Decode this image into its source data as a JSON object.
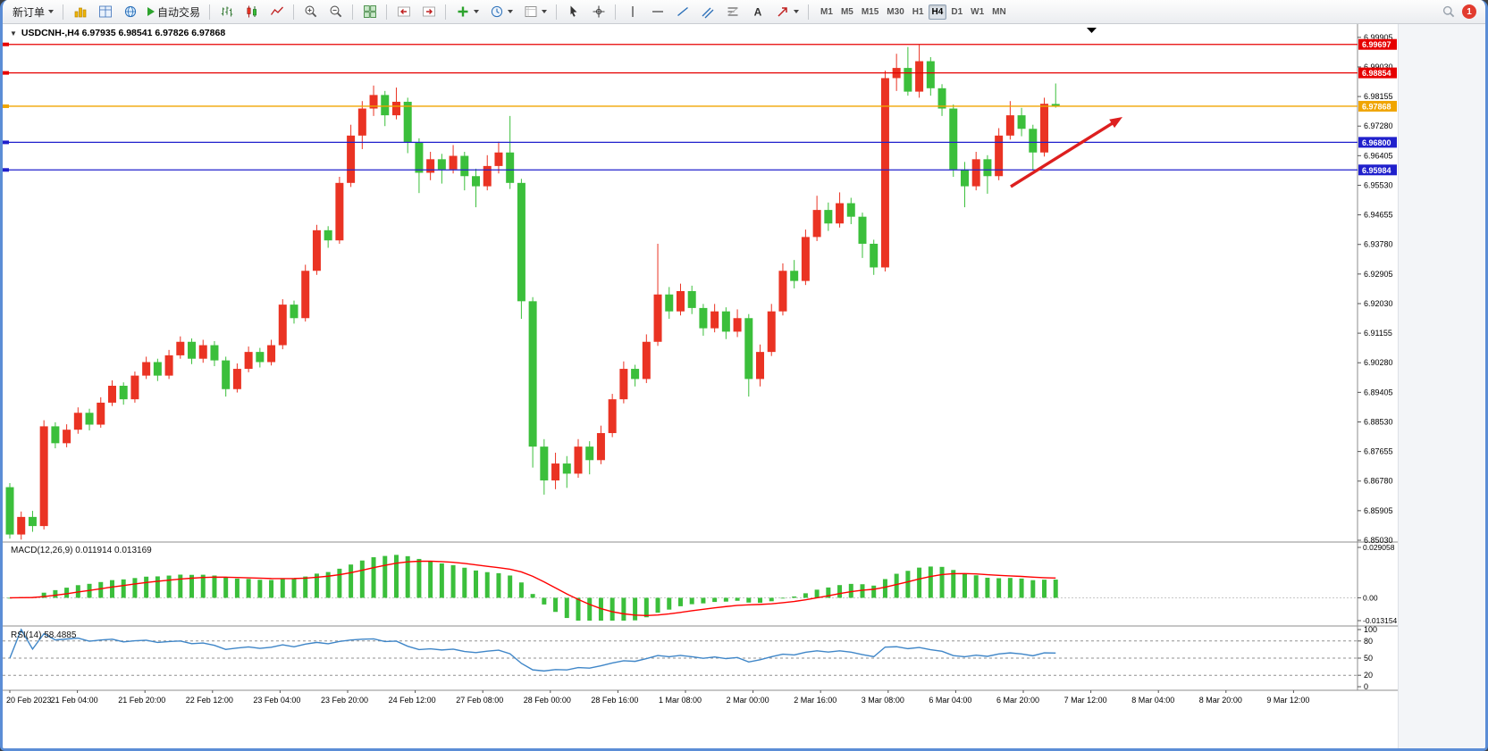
{
  "toolbar": {
    "new_order_label": "新订单",
    "auto_trading_label": "自动交易",
    "timeframes": [
      "M1",
      "M5",
      "M15",
      "M30",
      "H1",
      "H4",
      "D1",
      "W1",
      "MN"
    ],
    "active_timeframe": "H4",
    "notification_count": "1"
  },
  "chart": {
    "header_text": "USDCNH-,H4 6.97935 6.98541 6.97826 6.97868"
  },
  "chart_data": {
    "type": "candlestick",
    "title": "USDCNH-,H4",
    "symbol": "USDCNH",
    "timeframe": "H4",
    "ohlc_current": {
      "open": "6.97935",
      "high": "6.98541",
      "low": "6.97826",
      "close": "6.97868"
    },
    "ylim": [
      6.8503,
      6.9998
    ],
    "up_color": "#ea3323",
    "down_color": "#3bbf3b",
    "price_ticks": [
      "6.99905",
      "6.99030",
      "6.98155",
      "6.97280",
      "6.96405",
      "6.95530",
      "6.94655",
      "6.93780",
      "6.92905",
      "6.92030",
      "6.91155",
      "6.90280",
      "6.89405",
      "6.88530",
      "6.87655",
      "6.86780",
      "6.85905",
      "6.85030"
    ],
    "x_labels": [
      "20 Feb 2023",
      "21 Feb 04:00",
      "21 Feb 20:00",
      "22 Feb 12:00",
      "23 Feb 04:00",
      "23 Feb 20:00",
      "24 Feb 12:00",
      "27 Feb 08:00",
      "28 Feb 00:00",
      "28 Feb 16:00",
      "1 Mar 08:00",
      "2 Mar 00:00",
      "2 Mar 16:00",
      "3 Mar 08:00",
      "6 Mar 04:00",
      "6 Mar 20:00",
      "7 Mar 12:00",
      "8 Mar 04:00",
      "8 Mar 20:00",
      "9 Mar 12:00"
    ],
    "hlines": [
      {
        "price": 6.99697,
        "label": "6.99697",
        "color": "#e60000"
      },
      {
        "price": 6.98854,
        "label": "6.98854",
        "color": "#e60000"
      },
      {
        "price": 6.97868,
        "label": "6.97868",
        "color": "#f0a500"
      },
      {
        "price": 6.968,
        "label": "6.96800",
        "color": "#2020cc"
      },
      {
        "price": 6.95984,
        "label": "6.95984",
        "color": "#2020cc"
      }
    ],
    "ohlc": [
      [
        6.866,
        6.8672,
        6.8508,
        6.852
      ],
      [
        6.852,
        6.8588,
        6.8505,
        6.8572
      ],
      [
        6.8572,
        6.859,
        6.8528,
        6.8545
      ],
      [
        6.8545,
        6.8858,
        6.8535,
        6.884
      ],
      [
        6.884,
        6.8852,
        6.8775,
        6.879
      ],
      [
        6.879,
        6.8846,
        6.8778,
        6.883
      ],
      [
        6.883,
        6.8896,
        6.8818,
        6.888
      ],
      [
        6.888,
        6.8892,
        6.8828,
        6.8845
      ],
      [
        6.8845,
        6.8926,
        6.8836,
        6.891
      ],
      [
        6.891,
        6.8976,
        6.89,
        6.896
      ],
      [
        6.896,
        6.897,
        6.8904,
        6.892
      ],
      [
        6.892,
        6.9002,
        6.891,
        6.899
      ],
      [
        6.899,
        6.9046,
        6.898,
        6.903
      ],
      [
        6.903,
        6.904,
        6.8974,
        6.899
      ],
      [
        6.899,
        6.9066,
        6.898,
        6.905
      ],
      [
        6.905,
        6.9106,
        6.904,
        6.909
      ],
      [
        6.909,
        6.91,
        6.9024,
        6.904
      ],
      [
        6.904,
        6.9096,
        6.9028,
        6.908
      ],
      [
        6.908,
        6.9092,
        6.9018,
        6.9035
      ],
      [
        6.9035,
        6.9046,
        6.8928,
        6.895
      ],
      [
        6.895,
        6.9026,
        6.894,
        6.901
      ],
      [
        6.901,
        6.9076,
        6.9,
        6.906
      ],
      [
        6.906,
        6.9072,
        6.9014,
        6.903
      ],
      [
        6.903,
        6.9096,
        6.902,
        6.908
      ],
      [
        6.908,
        6.9216,
        6.9068,
        6.92
      ],
      [
        6.92,
        6.9212,
        6.9144,
        6.916
      ],
      [
        6.916,
        6.9318,
        6.915,
        6.93
      ],
      [
        6.93,
        6.9436,
        6.9288,
        6.942
      ],
      [
        6.942,
        6.9432,
        6.9368,
        6.939
      ],
      [
        6.939,
        6.9578,
        6.938,
        6.956
      ],
      [
        6.956,
        6.9732,
        6.9548,
        6.97
      ],
      [
        6.97,
        6.9802,
        6.966,
        6.978
      ],
      [
        6.978,
        6.9848,
        6.9758,
        6.982
      ],
      [
        6.982,
        6.9832,
        6.9728,
        6.976
      ],
      [
        6.976,
        6.9842,
        6.9748,
        6.98
      ],
      [
        6.98,
        6.9812,
        6.9648,
        6.968
      ],
      [
        6.968,
        6.9692,
        6.953,
        6.959
      ],
      [
        6.959,
        6.9652,
        6.9568,
        6.963
      ],
      [
        6.963,
        6.9646,
        6.9558,
        6.96
      ],
      [
        6.96,
        6.9672,
        6.9588,
        6.964
      ],
      [
        6.964,
        6.9652,
        6.9538,
        6.958
      ],
      [
        6.958,
        6.9602,
        6.9488,
        6.955
      ],
      [
        6.955,
        6.9642,
        6.9538,
        6.961
      ],
      [
        6.961,
        6.9682,
        6.9588,
        6.965
      ],
      [
        6.965,
        6.9758,
        6.9542,
        6.956
      ],
      [
        6.956,
        6.9572,
        6.9158,
        6.921
      ],
      [
        6.921,
        6.9222,
        6.8718,
        6.878
      ],
      [
        6.878,
        6.8802,
        6.8638,
        6.868
      ],
      [
        6.868,
        6.8762,
        6.8654,
        6.873
      ],
      [
        6.873,
        6.8752,
        6.8658,
        6.87
      ],
      [
        6.87,
        6.8802,
        6.8688,
        6.878
      ],
      [
        6.878,
        6.8796,
        6.8698,
        6.874
      ],
      [
        6.874,
        6.8842,
        6.8728,
        6.882
      ],
      [
        6.882,
        6.8936,
        6.8808,
        6.892
      ],
      [
        6.892,
        6.9032,
        6.8908,
        6.901
      ],
      [
        6.901,
        6.9022,
        6.8958,
        6.898
      ],
      [
        6.898,
        6.9112,
        6.8968,
        6.909
      ],
      [
        6.909,
        6.938,
        6.9078,
        6.923
      ],
      [
        6.923,
        6.9252,
        6.9158,
        6.918
      ],
      [
        6.918,
        6.9262,
        6.9168,
        6.924
      ],
      [
        6.924,
        6.9256,
        6.9172,
        6.919
      ],
      [
        6.919,
        6.9202,
        6.9108,
        6.913
      ],
      [
        6.913,
        6.9202,
        6.9118,
        6.918
      ],
      [
        6.918,
        6.9192,
        6.9098,
        6.912
      ],
      [
        6.912,
        6.9186,
        6.9104,
        6.916
      ],
      [
        6.916,
        6.9172,
        6.8928,
        6.898
      ],
      [
        6.898,
        6.9082,
        6.8958,
        6.906
      ],
      [
        6.906,
        6.9202,
        6.9048,
        6.918
      ],
      [
        6.918,
        6.9322,
        6.9168,
        6.93
      ],
      [
        6.93,
        6.9332,
        6.9248,
        6.927
      ],
      [
        6.927,
        6.9422,
        6.9258,
        6.94
      ],
      [
        6.94,
        6.9522,
        6.9388,
        6.948
      ],
      [
        6.948,
        6.9502,
        6.9418,
        6.944
      ],
      [
        6.944,
        6.9532,
        6.9428,
        6.95
      ],
      [
        6.95,
        6.9516,
        6.9438,
        6.946
      ],
      [
        6.946,
        6.9472,
        6.9338,
        6.938
      ],
      [
        6.938,
        6.9392,
        6.9288,
        6.931
      ],
      [
        6.931,
        6.9892,
        6.9298,
        6.987
      ],
      [
        6.987,
        6.9942,
        6.9832,
        6.99
      ],
      [
        6.99,
        6.9962,
        6.9818,
        6.983
      ],
      [
        6.983,
        6.9968,
        6.9812,
        6.992
      ],
      [
        6.992,
        6.9932,
        6.9818,
        6.984
      ],
      [
        6.984,
        6.9852,
        6.9758,
        6.978
      ],
      [
        6.978,
        6.9792,
        6.9578,
        6.96
      ],
      [
        6.96,
        6.9622,
        6.9488,
        6.955
      ],
      [
        6.955,
        6.9652,
        6.9538,
        6.963
      ],
      [
        6.963,
        6.9642,
        6.9528,
        6.958
      ],
      [
        6.958,
        6.9722,
        6.9568,
        6.97
      ],
      [
        6.97,
        6.9802,
        6.9688,
        6.976
      ],
      [
        6.976,
        6.9782,
        6.9698,
        6.972
      ],
      [
        6.972,
        6.9732,
        6.9598,
        6.965
      ],
      [
        6.965,
        6.9812,
        6.9638,
        6.9794
      ],
      [
        6.97935,
        6.98541,
        6.97826,
        6.97868
      ]
    ],
    "indicators": [
      {
        "type": "MACD",
        "params": [
          12,
          26,
          9
        ],
        "label": "MACD(12,26,9) 0.011914 0.013169",
        "values_text": [
          "0.011914",
          "0.013169"
        ],
        "axis_ticks": [
          "0.029058",
          "0.00",
          "-0.013154"
        ],
        "ylim": [
          -0.013154,
          0.029058
        ],
        "histogram_color": "#3bbf3b",
        "signal_color": "#ff0000"
      },
      {
        "type": "RSI",
        "params": [
          14
        ],
        "label": "RSI(14) 58.4885",
        "value_text": "58.4885",
        "axis_ticks": [
          "100",
          "80",
          "50",
          "20",
          "0"
        ],
        "levels": [
          80,
          50,
          20
        ],
        "line_color": "#3f86c8"
      }
    ],
    "annotation_arrow": {
      "from": [
        1128,
        182
      ],
      "to": [
        1253,
        104
      ],
      "color": "#dd1f1f"
    }
  }
}
